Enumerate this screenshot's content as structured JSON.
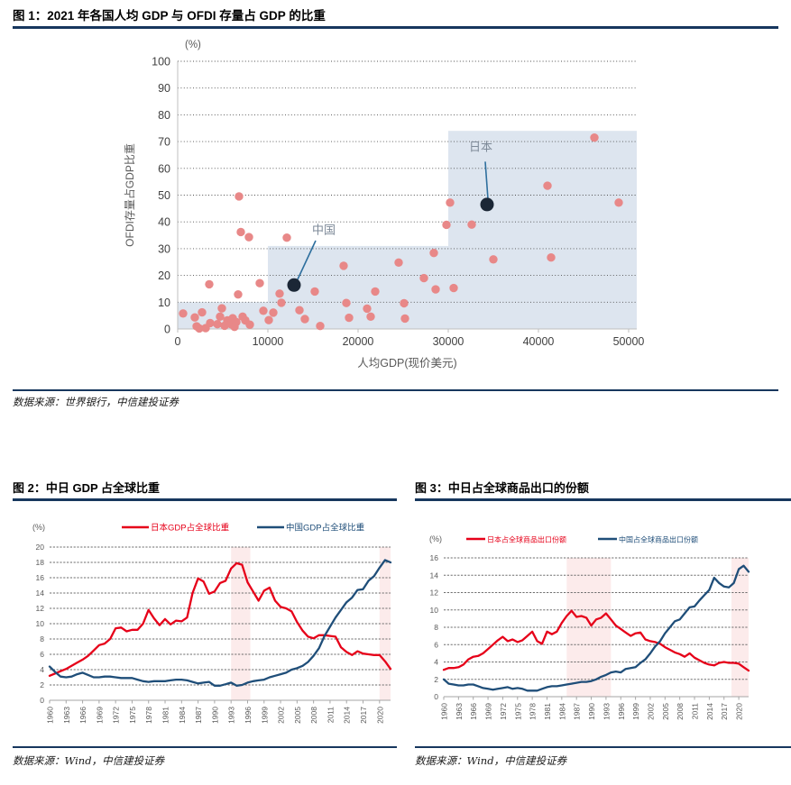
{
  "figures": {
    "fig1": {
      "title": "图 1：2021 年各国人均 GDP 与 OFDI 存量占 GDP 的比重",
      "source": "数据来源：世界银行，中信建投证券"
    },
    "fig2": {
      "title": "图 2：中日 GDP 占全球比重",
      "source": "数据来源：Wind，中信建投证券"
    },
    "fig3": {
      "title": "图 3：中日占全球商品出口的份额",
      "source": "数据来源：Wind，中信建投证券"
    }
  },
  "chart_data": [
    {
      "type": "scatter",
      "title": "2021年各国人均GDP与OFDI存量占GDP的比重",
      "unit_label": "(%)",
      "xlabel": "人均GDP(现价美元)",
      "ylabel": "OFDI存量占GDP比重",
      "xlim": [
        0,
        50900
      ],
      "ylim": [
        0,
        100
      ],
      "x_ticks": [
        0,
        10000,
        20000,
        30000,
        40000,
        50000
      ],
      "y_ticks": [
        0,
        10,
        20,
        30,
        40,
        50,
        60,
        70,
        80,
        90,
        100
      ],
      "grid": "dotted-horizontal",
      "point_color": "#e88888",
      "highlight_color": "#1b2736",
      "leader_color": "#2e6f9e",
      "annotation_text_color": "#7e8a98",
      "region_color": "#dde5ef",
      "shaded_regions": [
        {
          "x0": 0,
          "x1": 50900,
          "y0": 0,
          "y1": 10
        },
        {
          "x0": 10000,
          "x1": 50900,
          "y0": 0,
          "y1": 31
        },
        {
          "x0": 30000,
          "x1": 50900,
          "y0": 0,
          "y1": 74
        }
      ],
      "points": [
        [
          600,
          5.8
        ],
        [
          1900,
          4.3
        ],
        [
          2100,
          1.0
        ],
        [
          2400,
          0.2
        ],
        [
          2700,
          6.2
        ],
        [
          3100,
          0.3
        ],
        [
          3500,
          16.7
        ],
        [
          3600,
          2.2
        ],
        [
          4400,
          1.8
        ],
        [
          4700,
          4.6
        ],
        [
          4900,
          7.7
        ],
        [
          5200,
          1.2
        ],
        [
          5500,
          3.2
        ],
        [
          5900,
          1.8
        ],
        [
          6100,
          4.0
        ],
        [
          6300,
          0.8
        ],
        [
          6500,
          2.6
        ],
        [
          6700,
          12.9
        ],
        [
          6800,
          49.5
        ],
        [
          7000,
          36.2
        ],
        [
          7200,
          4.6
        ],
        [
          7500,
          3.2
        ],
        [
          7900,
          34.3
        ],
        [
          8000,
          1.6
        ],
        [
          9100,
          17.1
        ],
        [
          9500,
          6.8
        ],
        [
          10100,
          3.3
        ],
        [
          10600,
          6.1
        ],
        [
          11300,
          13.2
        ],
        [
          11500,
          9.8
        ],
        [
          12100,
          34.1
        ],
        [
          13500,
          7.0
        ],
        [
          14100,
          3.7
        ],
        [
          15200,
          14.0
        ],
        [
          15800,
          1.1
        ],
        [
          18400,
          23.6
        ],
        [
          18700,
          9.7
        ],
        [
          19000,
          4.2
        ],
        [
          21000,
          7.6
        ],
        [
          21400,
          4.6
        ],
        [
          21900,
          14.0
        ],
        [
          24500,
          24.8
        ],
        [
          25100,
          9.6
        ],
        [
          25200,
          3.9
        ],
        [
          27300,
          19.0
        ],
        [
          28400,
          28.4
        ],
        [
          28600,
          14.8
        ],
        [
          29800,
          38.9
        ],
        [
          30200,
          47.2
        ],
        [
          30600,
          15.3
        ],
        [
          32600,
          39.0
        ],
        [
          35000,
          26.0
        ],
        [
          41000,
          53.5
        ],
        [
          41400,
          26.7
        ],
        [
          46200,
          71.5
        ],
        [
          48900,
          47.2
        ]
      ],
      "highlight_points": [
        {
          "label": "中国",
          "x": 12900,
          "y": 16.4,
          "label_x": 16200,
          "label_y": 35.5,
          "line": [
            [
              15300,
              33.0
            ],
            [
              13200,
              17.8
            ]
          ]
        },
        {
          "label": "日本",
          "x": 34300,
          "y": 46.5,
          "label_x": 33600,
          "label_y": 66.5,
          "line": [
            [
              34100,
              62.5
            ],
            [
              34400,
              48.5
            ]
          ]
        }
      ]
    },
    {
      "type": "line",
      "title": "中日GDP占全球比重",
      "unit_label": "(%)",
      "x_start": 1960,
      "x_end": 2022,
      "x_tick_labels": [
        "1960",
        "1963",
        "1966",
        "1969",
        "1972",
        "1975",
        "1978",
        "1981",
        "1984",
        "1987",
        "1990",
        "1993",
        "1996",
        "1999",
        "2002",
        "2005",
        "2008",
        "2011",
        "2014",
        "2017",
        "2020"
      ],
      "ylim": [
        0,
        20
      ],
      "y_ticks": [
        0,
        2,
        4,
        6,
        8,
        10,
        12,
        14,
        16,
        18,
        20
      ],
      "grid": "dashed-horizontal",
      "band_color": "#fcebeb",
      "bands": [
        {
          "x0": 1993,
          "x1": 1996.5
        },
        {
          "x0": 2020,
          "x1": 2022
        }
      ],
      "series": [
        {
          "name": "日本GDP占全球比重",
          "color": "#e60019",
          "values": [
            3.2,
            3.5,
            3.8,
            4.1,
            4.5,
            4.9,
            5.3,
            5.8,
            6.5,
            7.2,
            7.4,
            8.0,
            9.4,
            9.5,
            9.0,
            9.2,
            9.2,
            10.0,
            11.8,
            10.7,
            9.8,
            10.6,
            9.9,
            10.4,
            10.3,
            10.8,
            14.0,
            15.9,
            15.5,
            13.9,
            14.2,
            15.3,
            15.6,
            17.2,
            17.9,
            17.7,
            15.4,
            14.2,
            13.0,
            14.3,
            14.7,
            13.0,
            12.2,
            12.0,
            11.6,
            10.2,
            9.1,
            8.3,
            8.1,
            8.5,
            8.5,
            8.4,
            8.3,
            6.9,
            6.3,
            5.9,
            6.4,
            6.1,
            6.0,
            5.9,
            5.9,
            5.1,
            4.1
          ]
        },
        {
          "name": "中国GDP占全球比重",
          "color": "#1f4e79",
          "values": [
            4.4,
            3.7,
            3.1,
            3.0,
            3.1,
            3.4,
            3.6,
            3.3,
            3.0,
            3.0,
            3.1,
            3.1,
            3.0,
            2.9,
            2.9,
            2.9,
            2.7,
            2.5,
            2.4,
            2.5,
            2.5,
            2.5,
            2.6,
            2.7,
            2.7,
            2.6,
            2.4,
            2.2,
            2.3,
            2.4,
            1.9,
            1.9,
            2.1,
            2.3,
            1.9,
            2.0,
            2.3,
            2.5,
            2.6,
            2.7,
            3.0,
            3.2,
            3.4,
            3.6,
            4.0,
            4.2,
            4.5,
            5.0,
            5.8,
            6.8,
            8.4,
            9.6,
            10.8,
            11.8,
            12.8,
            13.4,
            14.4,
            14.5,
            15.6,
            16.2,
            17.3,
            18.3,
            18.0
          ]
        }
      ],
      "legend_position": "top"
    },
    {
      "type": "line",
      "title": "中日占全球商品出口的份额",
      "unit_label": "(%)",
      "x_start": 1960,
      "x_end": 2022,
      "x_tick_labels": [
        "1960",
        "1963",
        "1966",
        "1969",
        "1972",
        "1975",
        "1978",
        "1981",
        "1984",
        "1987",
        "1990",
        "1993",
        "1996",
        "1999",
        "2002",
        "2005",
        "2008",
        "2011",
        "2014",
        "2017",
        "2020"
      ],
      "ylim": [
        0,
        16
      ],
      "y_ticks": [
        0,
        2,
        4,
        6,
        8,
        10,
        12,
        14,
        16
      ],
      "grid": "dashed-horizontal",
      "band_color": "#fcebeb",
      "bands": [
        {
          "x0": 1985,
          "x1": 1994
        },
        {
          "x0": 2018.5,
          "x1": 2022
        }
      ],
      "series": [
        {
          "name": "日本占全球商品出口份额",
          "color": "#e60019",
          "values": [
            3.1,
            3.3,
            3.3,
            3.4,
            3.7,
            4.3,
            4.6,
            4.7,
            5.0,
            5.5,
            6.0,
            6.5,
            6.9,
            6.4,
            6.6,
            6.3,
            6.5,
            7.0,
            7.5,
            6.4,
            6.1,
            7.5,
            7.2,
            7.5,
            8.5,
            9.3,
            9.9,
            9.2,
            9.3,
            9.1,
            8.2,
            8.9,
            9.1,
            9.6,
            8.9,
            8.2,
            7.8,
            7.4,
            7.0,
            7.3,
            7.4,
            6.6,
            6.4,
            6.3,
            6.1,
            5.7,
            5.4,
            5.1,
            4.9,
            4.6,
            5.0,
            4.5,
            4.2,
            3.9,
            3.7,
            3.6,
            3.9,
            4.0,
            3.9,
            3.9,
            3.8,
            3.4,
            3.0
          ]
        },
        {
          "name": "中国占全球商品出口份额",
          "color": "#1f4e79",
          "values": [
            2.0,
            1.5,
            1.4,
            1.3,
            1.3,
            1.4,
            1.4,
            1.2,
            1.0,
            0.9,
            0.8,
            0.9,
            1.0,
            1.1,
            0.9,
            1.0,
            0.9,
            0.7,
            0.7,
            0.7,
            0.9,
            1.1,
            1.2,
            1.2,
            1.3,
            1.4,
            1.5,
            1.6,
            1.7,
            1.7,
            1.8,
            2.0,
            2.3,
            2.5,
            2.8,
            2.9,
            2.8,
            3.2,
            3.3,
            3.4,
            3.9,
            4.3,
            5.0,
            5.8,
            6.4,
            7.3,
            8.0,
            8.7,
            8.9,
            9.6,
            10.3,
            10.4,
            11.1,
            11.7,
            12.3,
            13.7,
            13.1,
            12.7,
            12.6,
            13.1,
            14.7,
            15.1,
            14.4
          ]
        }
      ],
      "legend_position": "top"
    }
  ],
  "colors": {
    "rule_navy": "#17375e",
    "japan_red": "#e60019",
    "china_blue": "#1f4e79",
    "scatter_salmon": "#e88888",
    "band_pink": "#fcebeb",
    "region_blue": "#dde5ef"
  }
}
